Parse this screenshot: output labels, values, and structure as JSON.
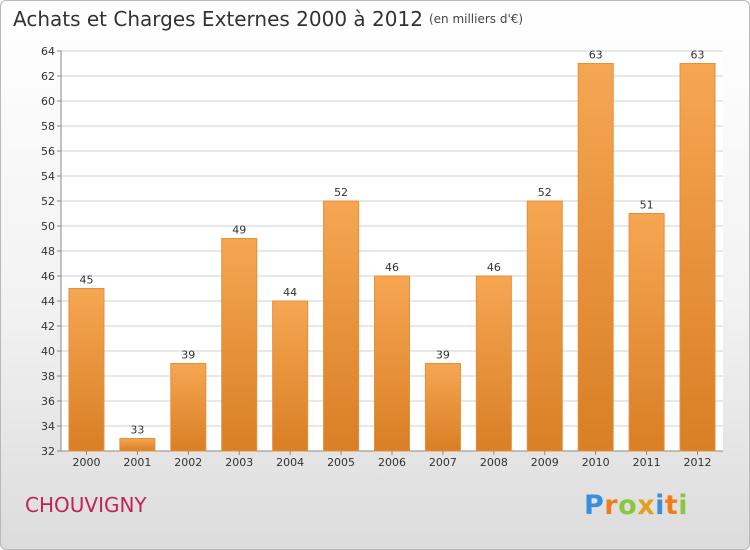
{
  "title": "Achats et Charges Externes 2000 à 2012",
  "subtitle": "(en milliers d'€)",
  "commune": "CHOUVIGNY",
  "logo": {
    "text": "Proxiti",
    "letters": [
      {
        "char": "P",
        "color": "#3a8ede"
      },
      {
        "char": "r",
        "color": "#f07d1c"
      },
      {
        "char": "o",
        "color": "#8cc63f"
      },
      {
        "char": "x",
        "color": "#e0a11f"
      },
      {
        "char": "i",
        "color": "#3a8ede"
      },
      {
        "char": "t",
        "color": "#f07d1c"
      },
      {
        "char": "i",
        "color": "#8cc63f"
      }
    ]
  },
  "colors": {
    "bar_top": "#f6a652",
    "bar_bottom": "#d97f25",
    "bar_edge": "#e4903a",
    "grid": "#d0d0d0",
    "text": "#333333"
  },
  "chart_data": {
    "type": "bar",
    "categories": [
      "2000",
      "2001",
      "2002",
      "2003",
      "2004",
      "2005",
      "2006",
      "2007",
      "2008",
      "2009",
      "2010",
      "2011",
      "2012"
    ],
    "values": [
      45,
      33,
      39,
      49,
      44,
      52,
      46,
      39,
      46,
      52,
      63,
      51,
      63
    ],
    "ylim": [
      32,
      64
    ],
    "yticks": [
      32,
      34,
      36,
      38,
      40,
      42,
      44,
      46,
      48,
      50,
      52,
      54,
      56,
      58,
      60,
      62,
      64
    ],
    "grid": true,
    "data_labels": true
  }
}
